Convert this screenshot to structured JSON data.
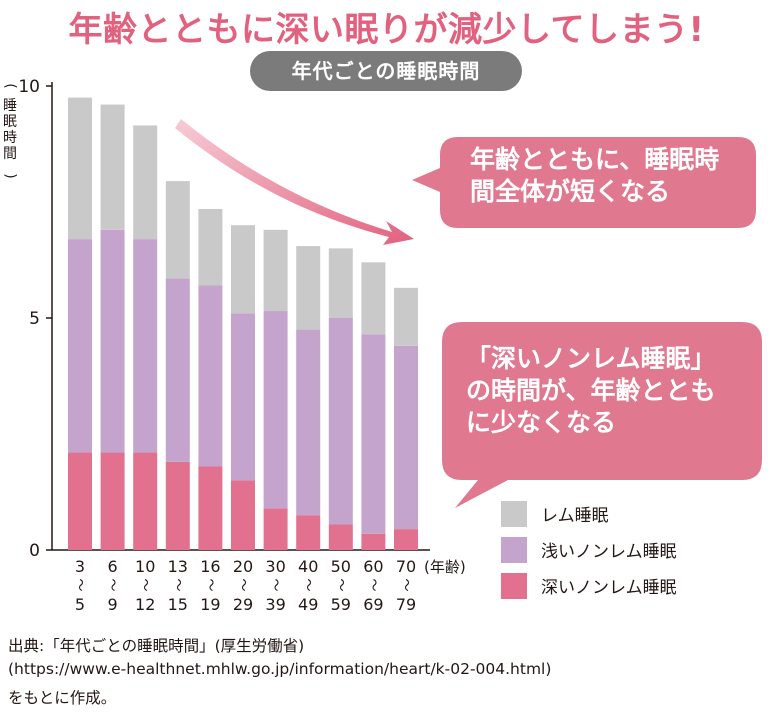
{
  "headline": "年齢とともに深い眠りが減少してしまう!",
  "chart_data": {
    "type": "bar",
    "stacked": true,
    "title": "年代ごとの睡眠時間",
    "ylabel": "睡眠時間",
    "xlabel": "(年齢)",
    "ylim": [
      0,
      10
    ],
    "yticks": [
      "0",
      "5",
      "10"
    ],
    "categories": [
      {
        "top": "3",
        "bottom": "5"
      },
      {
        "top": "6",
        "bottom": "9"
      },
      {
        "top": "10",
        "bottom": "12"
      },
      {
        "top": "13",
        "bottom": "15"
      },
      {
        "top": "16",
        "bottom": "19"
      },
      {
        "top": "20",
        "bottom": "29"
      },
      {
        "top": "30",
        "bottom": "39"
      },
      {
        "top": "40",
        "bottom": "49"
      },
      {
        "top": "50",
        "bottom": "59"
      },
      {
        "top": "60",
        "bottom": "69"
      },
      {
        "top": "70",
        "bottom": "79"
      }
    ],
    "range_mark": "〜",
    "series": [
      {
        "name": "深いノンレム睡眠",
        "color": "#e2718f",
        "values": [
          2.1,
          2.1,
          2.1,
          1.9,
          1.8,
          1.5,
          0.9,
          0.75,
          0.55,
          0.35,
          0.45
        ]
      },
      {
        "name": "浅いノンレム睡眠",
        "color": "#c4a4cc",
        "values": [
          4.6,
          4.8,
          4.6,
          3.95,
          3.9,
          3.6,
          4.25,
          4.0,
          4.45,
          4.3,
          3.95
        ]
      },
      {
        "name": "レム睡眠",
        "color": "#c9c9c9",
        "values": [
          3.05,
          2.7,
          2.45,
          2.1,
          1.65,
          1.9,
          1.75,
          1.8,
          1.5,
          1.55,
          1.25
        ]
      }
    ],
    "legend": [
      {
        "label": "レム睡眠",
        "color": "#c9c9c9"
      },
      {
        "label": "浅いノンレム睡眠",
        "color": "#c4a4cc"
      },
      {
        "label": "深いノンレム睡眠",
        "color": "#e2718f"
      }
    ]
  },
  "callouts": {
    "first": [
      "年齢とともに、睡眠時",
      "間全体が短くなる"
    ],
    "second": [
      "「深いノンレム睡眠」",
      "の時間が、年齢ととも",
      "に少なくなる"
    ]
  },
  "colors": {
    "accent": "#e2617f",
    "bubble": "#e0788f",
    "arrow": "#e7809a"
  },
  "source": {
    "line1": "出典:「年代ごとの睡眠時間」(厚生労働省)",
    "line2": "(https://www.e-healthnet.mhlw.go.jp/information/heart/k-02-004.html)",
    "line3": "をもとに作成。"
  }
}
